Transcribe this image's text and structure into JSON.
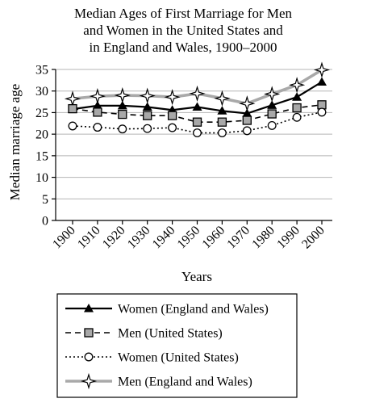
{
  "chart_data": {
    "type": "line",
    "title_lines": [
      "Median Ages of First Marriage for Men",
      "and Women in the United States and",
      "in England and Wales, 1900–2000"
    ],
    "xlabel": "Years",
    "ylabel": "Median marriage age",
    "x": [
      1900,
      1910,
      1920,
      1930,
      1940,
      1950,
      1960,
      1970,
      1980,
      1990,
      2000
    ],
    "x_tick_labels": [
      "1900",
      "1910",
      "1920",
      "1930",
      "1940",
      "1950",
      "1960",
      "1970",
      "1980",
      "1990",
      "2000"
    ],
    "y_ticks": [
      0,
      5,
      10,
      15,
      20,
      25,
      30,
      35
    ],
    "ylim": [
      0,
      35
    ],
    "grid": "horizontal",
    "legend_position": "bottom",
    "series": [
      {
        "name": "Women (England and Wales)",
        "marker": "filled-triangle",
        "line_style": "solid",
        "color": "#000000",
        "values": [
          25.8,
          26.6,
          26.6,
          26.3,
          25.6,
          26.3,
          25.4,
          24.8,
          26.7,
          28.6,
          32.1
        ]
      },
      {
        "name": "Men (United States)",
        "marker": "gray-square",
        "line_style": "dashed",
        "color": "#000000",
        "values": [
          25.9,
          25.1,
          24.6,
          24.3,
          24.3,
          22.8,
          22.8,
          23.2,
          24.7,
          26.1,
          26.8
        ]
      },
      {
        "name": "Women (United States)",
        "marker": "open-circle",
        "line_style": "dotted",
        "color": "#000000",
        "values": [
          21.9,
          21.6,
          21.2,
          21.3,
          21.5,
          20.3,
          20.3,
          20.8,
          22.0,
          23.9,
          25.1
        ]
      },
      {
        "name": "Men (England and Wales)",
        "marker": "star",
        "line_style": "solid-gray",
        "color": "#aaaaaa",
        "values": [
          28.2,
          28.8,
          29.0,
          28.9,
          28.6,
          29.4,
          28.3,
          27.1,
          29.3,
          31.4,
          34.9
        ]
      }
    ]
  }
}
